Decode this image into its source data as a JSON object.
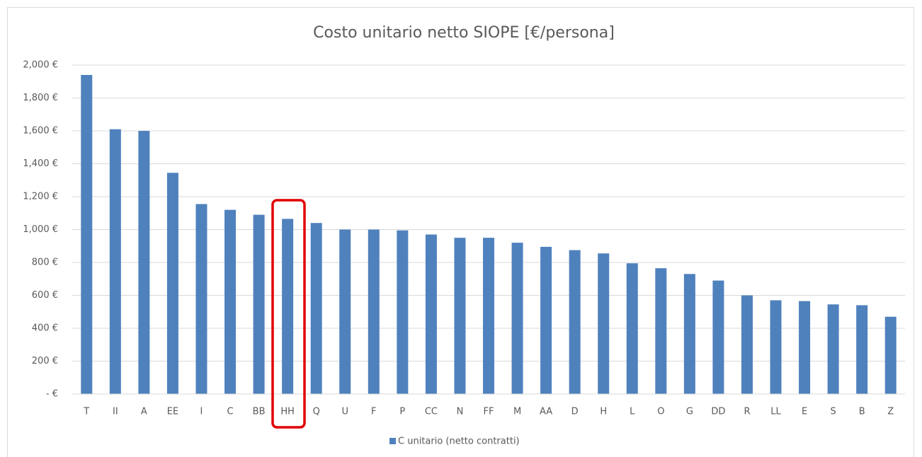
{
  "chart_data": {
    "type": "bar",
    "title": "Costo unitario netto SIOPE [€/persona]",
    "categories": [
      "T",
      "II",
      "A",
      "EE",
      "I",
      "C",
      "BB",
      "HH",
      "Q",
      "U",
      "F",
      "P",
      "CC",
      "N",
      "FF",
      "M",
      "AA",
      "D",
      "H",
      "L",
      "O",
      "G",
      "DD",
      "R",
      "LL",
      "E",
      "S",
      "B",
      "Z"
    ],
    "series": [
      {
        "name": "C unitario (netto contratti)",
        "color": "#4f81bd",
        "values": [
          1940,
          1610,
          1600,
          1345,
          1155,
          1120,
          1090,
          1065,
          1040,
          1000,
          1000,
          995,
          970,
          950,
          950,
          920,
          895,
          875,
          855,
          795,
          765,
          730,
          690,
          600,
          570,
          565,
          545,
          540,
          470
        ]
      }
    ],
    "ylim": [
      0,
      2000
    ],
    "yticks": [
      {
        "value": 0,
        "label": "-  €"
      },
      {
        "value": 200,
        "label": "200 €"
      },
      {
        "value": 400,
        "label": "400 €"
      },
      {
        "value": 600,
        "label": "600 €"
      },
      {
        "value": 800,
        "label": "800 €"
      },
      {
        "value": 1000,
        "label": "1,000 €"
      },
      {
        "value": 1200,
        "label": "1,200 €"
      },
      {
        "value": 1400,
        "label": "1,400 €"
      },
      {
        "value": 1600,
        "label": "1,600 €"
      },
      {
        "value": 1800,
        "label": "1,800 €"
      },
      {
        "value": 2000,
        "label": "2,000 €"
      }
    ],
    "grid": true,
    "legend": "bottom"
  }
}
